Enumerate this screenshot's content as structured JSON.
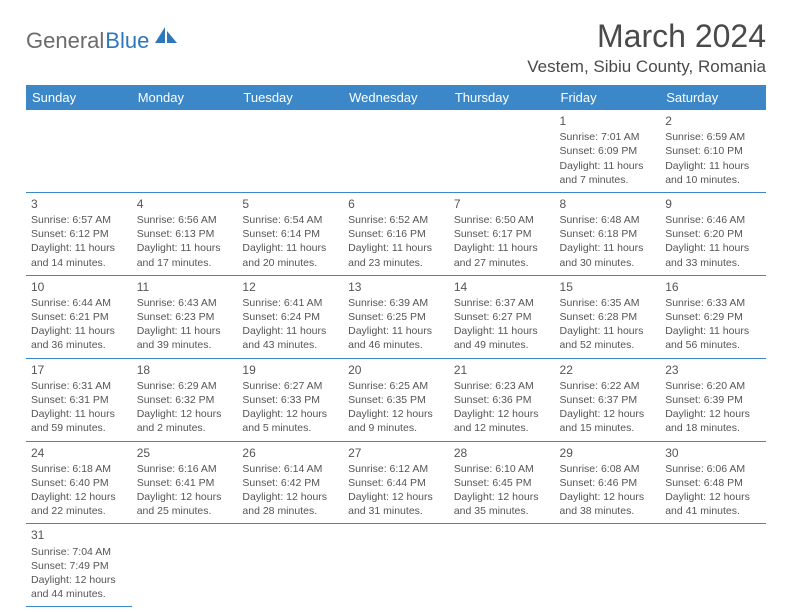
{
  "logo": {
    "general": "General",
    "blue": "Blue"
  },
  "title": "March 2024",
  "subtitle": "Vestem, Sibiu County, Romania",
  "colors": {
    "header_bg": "#3b87c8",
    "header_text": "#ffffff",
    "body_text": "#4a4a4a",
    "border": "#3b87c8",
    "logo_blue": "#2f77bb",
    "logo_gray": "#6b6b6b"
  },
  "days_of_week": [
    "Sunday",
    "Monday",
    "Tuesday",
    "Wednesday",
    "Thursday",
    "Friday",
    "Saturday"
  ],
  "weeks": [
    [
      null,
      null,
      null,
      null,
      null,
      {
        "n": "1",
        "sr": "Sunrise: 7:01 AM",
        "ss": "Sunset: 6:09 PM",
        "d1": "Daylight: 11 hours",
        "d2": "and 7 minutes."
      },
      {
        "n": "2",
        "sr": "Sunrise: 6:59 AM",
        "ss": "Sunset: 6:10 PM",
        "d1": "Daylight: 11 hours",
        "d2": "and 10 minutes."
      }
    ],
    [
      {
        "n": "3",
        "sr": "Sunrise: 6:57 AM",
        "ss": "Sunset: 6:12 PM",
        "d1": "Daylight: 11 hours",
        "d2": "and 14 minutes."
      },
      {
        "n": "4",
        "sr": "Sunrise: 6:56 AM",
        "ss": "Sunset: 6:13 PM",
        "d1": "Daylight: 11 hours",
        "d2": "and 17 minutes."
      },
      {
        "n": "5",
        "sr": "Sunrise: 6:54 AM",
        "ss": "Sunset: 6:14 PM",
        "d1": "Daylight: 11 hours",
        "d2": "and 20 minutes."
      },
      {
        "n": "6",
        "sr": "Sunrise: 6:52 AM",
        "ss": "Sunset: 6:16 PM",
        "d1": "Daylight: 11 hours",
        "d2": "and 23 minutes."
      },
      {
        "n": "7",
        "sr": "Sunrise: 6:50 AM",
        "ss": "Sunset: 6:17 PM",
        "d1": "Daylight: 11 hours",
        "d2": "and 27 minutes."
      },
      {
        "n": "8",
        "sr": "Sunrise: 6:48 AM",
        "ss": "Sunset: 6:18 PM",
        "d1": "Daylight: 11 hours",
        "d2": "and 30 minutes."
      },
      {
        "n": "9",
        "sr": "Sunrise: 6:46 AM",
        "ss": "Sunset: 6:20 PM",
        "d1": "Daylight: 11 hours",
        "d2": "and 33 minutes."
      }
    ],
    [
      {
        "n": "10",
        "sr": "Sunrise: 6:44 AM",
        "ss": "Sunset: 6:21 PM",
        "d1": "Daylight: 11 hours",
        "d2": "and 36 minutes."
      },
      {
        "n": "11",
        "sr": "Sunrise: 6:43 AM",
        "ss": "Sunset: 6:23 PM",
        "d1": "Daylight: 11 hours",
        "d2": "and 39 minutes."
      },
      {
        "n": "12",
        "sr": "Sunrise: 6:41 AM",
        "ss": "Sunset: 6:24 PM",
        "d1": "Daylight: 11 hours",
        "d2": "and 43 minutes."
      },
      {
        "n": "13",
        "sr": "Sunrise: 6:39 AM",
        "ss": "Sunset: 6:25 PM",
        "d1": "Daylight: 11 hours",
        "d2": "and 46 minutes."
      },
      {
        "n": "14",
        "sr": "Sunrise: 6:37 AM",
        "ss": "Sunset: 6:27 PM",
        "d1": "Daylight: 11 hours",
        "d2": "and 49 minutes."
      },
      {
        "n": "15",
        "sr": "Sunrise: 6:35 AM",
        "ss": "Sunset: 6:28 PM",
        "d1": "Daylight: 11 hours",
        "d2": "and 52 minutes."
      },
      {
        "n": "16",
        "sr": "Sunrise: 6:33 AM",
        "ss": "Sunset: 6:29 PM",
        "d1": "Daylight: 11 hours",
        "d2": "and 56 minutes."
      }
    ],
    [
      {
        "n": "17",
        "sr": "Sunrise: 6:31 AM",
        "ss": "Sunset: 6:31 PM",
        "d1": "Daylight: 11 hours",
        "d2": "and 59 minutes."
      },
      {
        "n": "18",
        "sr": "Sunrise: 6:29 AM",
        "ss": "Sunset: 6:32 PM",
        "d1": "Daylight: 12 hours",
        "d2": "and 2 minutes."
      },
      {
        "n": "19",
        "sr": "Sunrise: 6:27 AM",
        "ss": "Sunset: 6:33 PM",
        "d1": "Daylight: 12 hours",
        "d2": "and 5 minutes."
      },
      {
        "n": "20",
        "sr": "Sunrise: 6:25 AM",
        "ss": "Sunset: 6:35 PM",
        "d1": "Daylight: 12 hours",
        "d2": "and 9 minutes."
      },
      {
        "n": "21",
        "sr": "Sunrise: 6:23 AM",
        "ss": "Sunset: 6:36 PM",
        "d1": "Daylight: 12 hours",
        "d2": "and 12 minutes."
      },
      {
        "n": "22",
        "sr": "Sunrise: 6:22 AM",
        "ss": "Sunset: 6:37 PM",
        "d1": "Daylight: 12 hours",
        "d2": "and 15 minutes."
      },
      {
        "n": "23",
        "sr": "Sunrise: 6:20 AM",
        "ss": "Sunset: 6:39 PM",
        "d1": "Daylight: 12 hours",
        "d2": "and 18 minutes."
      }
    ],
    [
      {
        "n": "24",
        "sr": "Sunrise: 6:18 AM",
        "ss": "Sunset: 6:40 PM",
        "d1": "Daylight: 12 hours",
        "d2": "and 22 minutes."
      },
      {
        "n": "25",
        "sr": "Sunrise: 6:16 AM",
        "ss": "Sunset: 6:41 PM",
        "d1": "Daylight: 12 hours",
        "d2": "and 25 minutes."
      },
      {
        "n": "26",
        "sr": "Sunrise: 6:14 AM",
        "ss": "Sunset: 6:42 PM",
        "d1": "Daylight: 12 hours",
        "d2": "and 28 minutes."
      },
      {
        "n": "27",
        "sr": "Sunrise: 6:12 AM",
        "ss": "Sunset: 6:44 PM",
        "d1": "Daylight: 12 hours",
        "d2": "and 31 minutes."
      },
      {
        "n": "28",
        "sr": "Sunrise: 6:10 AM",
        "ss": "Sunset: 6:45 PM",
        "d1": "Daylight: 12 hours",
        "d2": "and 35 minutes."
      },
      {
        "n": "29",
        "sr": "Sunrise: 6:08 AM",
        "ss": "Sunset: 6:46 PM",
        "d1": "Daylight: 12 hours",
        "d2": "and 38 minutes."
      },
      {
        "n": "30",
        "sr": "Sunrise: 6:06 AM",
        "ss": "Sunset: 6:48 PM",
        "d1": "Daylight: 12 hours",
        "d2": "and 41 minutes."
      }
    ],
    [
      {
        "n": "31",
        "sr": "Sunrise: 7:04 AM",
        "ss": "Sunset: 7:49 PM",
        "d1": "Daylight: 12 hours",
        "d2": "and 44 minutes."
      },
      null,
      null,
      null,
      null,
      null,
      null
    ]
  ]
}
